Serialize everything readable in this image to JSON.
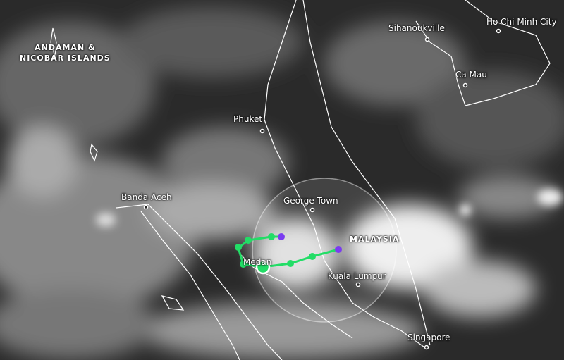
{
  "map": {
    "layer": "satellite-infrared-clouds",
    "regions": [
      {
        "name": "ANDAMAN &"
      },
      {
        "name": "NICOBAR ISLANDS"
      },
      {
        "name": "MALAYSIA"
      }
    ],
    "cities": [
      {
        "name": "Sihanoukville"
      },
      {
        "name": "Ho Chi Minh City"
      },
      {
        "name": "Ca Mau"
      },
      {
        "name": "Phuket"
      },
      {
        "name": "Banda Aceh"
      },
      {
        "name": "George Town"
      },
      {
        "name": "Medan"
      },
      {
        "name": "Kuala Lumpur"
      },
      {
        "name": "Singapore"
      }
    ],
    "colors": {
      "track": "#22dd66",
      "track_end": "#7a3cf0",
      "radius_circle": "#ffffff"
    }
  }
}
